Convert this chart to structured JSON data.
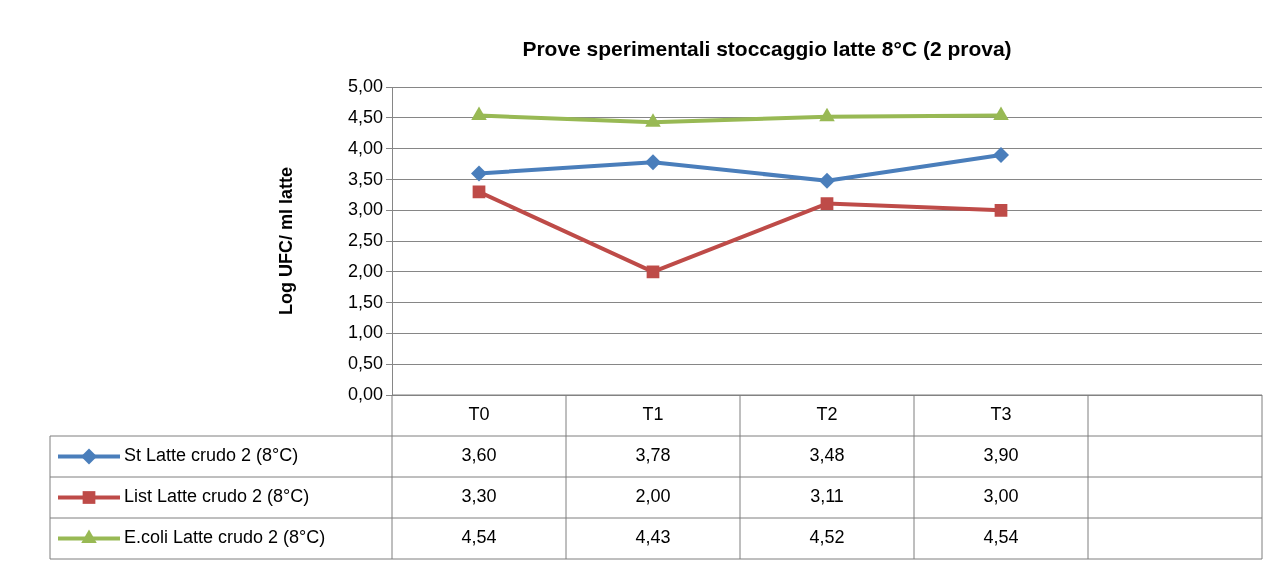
{
  "chart_data": {
    "type": "line",
    "title": "Prove sperimentali stoccaggio latte 8°C (2 prova)",
    "ylabel": "Log UFC/ ml latte",
    "categories": [
      "T0",
      "T1",
      "T2",
      "T3",
      null
    ],
    "series": [
      {
        "name": "St Latte crudo 2 (8°C)",
        "color": "#4a7ebb",
        "marker": "diamond",
        "values": [
          3.6,
          3.78,
          3.48,
          3.9,
          null
        ],
        "value_labels": [
          "3,60",
          "3,78",
          "3,48",
          "3,90",
          null
        ]
      },
      {
        "name": "List Latte crudo 2 (8°C)",
        "color": "#be4b48",
        "marker": "square",
        "values": [
          3.3,
          2.0,
          3.11,
          3.0,
          null
        ],
        "value_labels": [
          "3,30",
          "2,00",
          "3,11",
          "3,00",
          null
        ]
      },
      {
        "name": "E.coli Latte crudo 2 (8°C)",
        "color": "#98b954",
        "marker": "triangle",
        "values": [
          4.54,
          4.43,
          4.52,
          4.54,
          null
        ],
        "value_labels": [
          "4,54",
          "4,43",
          "4,52",
          "4,54",
          null
        ]
      }
    ],
    "ylim": [
      0,
      5
    ],
    "yticks": [
      {
        "value": 0,
        "label": "0,00"
      },
      {
        "value": 0.5,
        "label": "0,50"
      },
      {
        "value": 1,
        "label": "1,00"
      },
      {
        "value": 1.5,
        "label": "1,50"
      },
      {
        "value": 2,
        "label": "2,00"
      },
      {
        "value": 2.5,
        "label": "2,50"
      },
      {
        "value": 3,
        "label": "3,00"
      },
      {
        "value": 3.5,
        "label": "3,50"
      },
      {
        "value": 4,
        "label": "4,00"
      },
      {
        "value": 4.5,
        "label": "4,50"
      },
      {
        "value": 5,
        "label": "5,00"
      }
    ],
    "grid": "y",
    "legend": "bottom",
    "line_style": "solid"
  }
}
